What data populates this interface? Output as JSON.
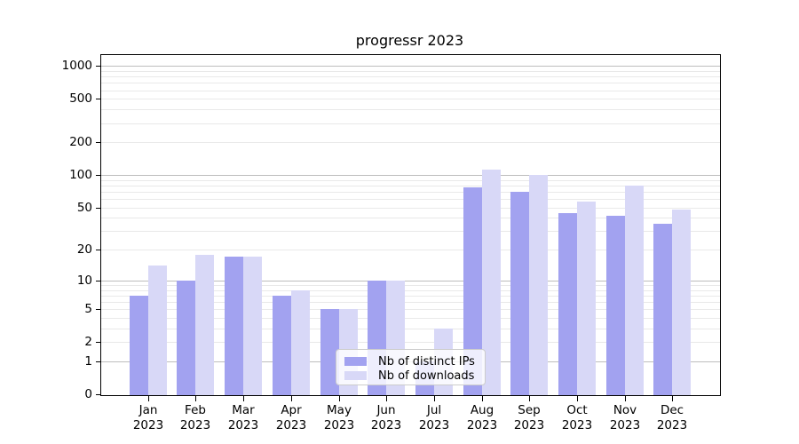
{
  "title": "progressr 2023",
  "chart_data": {
    "type": "bar",
    "title": "progressr 2023",
    "scale": "log1p (pseudo-log y axis)",
    "grid": "horizontal only; darker lines at 1, 10, 100, 1000; faint minor lines at 2-9 of each decade",
    "legend_position": "inside plot, lower middle",
    "categories": [
      "Jan",
      "Feb",
      "Mar",
      "Apr",
      "May",
      "Jun",
      "Jul",
      "Aug",
      "Sep",
      "Oct",
      "Nov",
      "Dec"
    ],
    "category_year": "2023",
    "series": [
      {
        "name": "Nb of distinct IPs",
        "color": "#a2a2f0",
        "values": [
          7,
          10,
          17,
          7,
          5,
          10,
          1,
          77,
          70,
          44,
          42,
          35
        ]
      },
      {
        "name": "Nb of downloads",
        "color": "#d8d8f7",
        "values": [
          14,
          18,
          17,
          8,
          5,
          10,
          3,
          113,
          100,
          57,
          80,
          48
        ]
      }
    ],
    "y_ticks": [
      0,
      1,
      2,
      5,
      10,
      20,
      50,
      100,
      200,
      500,
      1000
    ],
    "ylim": [
      0,
      1259
    ],
    "xlabel": "",
    "ylabel": ""
  },
  "legend": {
    "items": [
      {
        "label": "Nb of distinct IPs"
      },
      {
        "label": "Nb of downloads"
      }
    ]
  },
  "colors": {
    "bar_distinct_ips": "#a2a2f0",
    "bar_downloads": "#d8d8f7",
    "grid_major": "#bdbdbd",
    "grid_minor": "#e9e9e9",
    "axis": "#000000",
    "legend_border": "#cccccc",
    "background": "#ffffff"
  }
}
